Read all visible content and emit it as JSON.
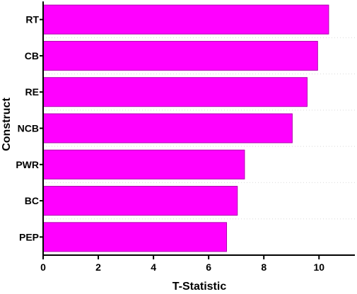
{
  "chart_data": {
    "type": "bar",
    "orientation": "horizontal",
    "title": "",
    "xlabel": "T-Statistic",
    "ylabel": "Construct",
    "categories": [
      "RT",
      "CB",
      "RE",
      "NCB",
      "PWR",
      "BC",
      "PEP"
    ],
    "values": [
      10.35,
      9.95,
      9.57,
      9.03,
      7.3,
      7.04,
      6.65
    ],
    "xlim": [
      0,
      11.3
    ],
    "xticks": [
      "0",
      "2",
      "4",
      "6",
      "8",
      "10"
    ],
    "grid": "horizontal dotted",
    "legend": "none",
    "bar_color": "#FF00FF",
    "bar_edge_color": "#B000B0"
  }
}
